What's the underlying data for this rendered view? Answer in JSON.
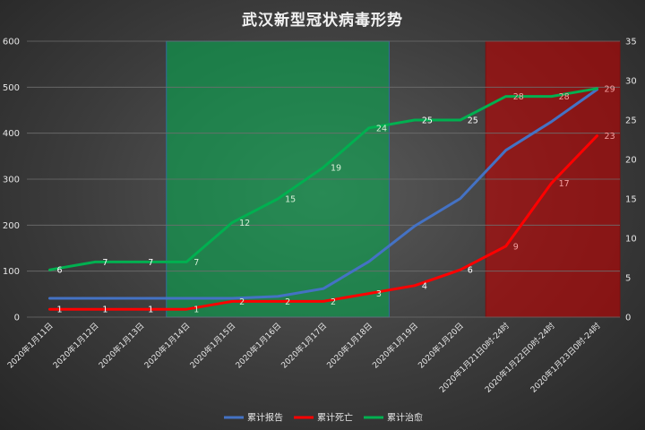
{
  "chart_data": {
    "type": "line",
    "title": "武汉新型冠状病毒形势",
    "categories": [
      "2020年1月11日",
      "2020年1月12日",
      "2020年1月13日",
      "2020年1月14日",
      "2020年1月15日",
      "2020年1月16日",
      "2020年1月17日",
      "2020年1月18日",
      "2020年1月19日",
      "2020年1月20日",
      "2020年1月21日0时-24时",
      "2020年1月22日0时-24时",
      "2020年1月23日0时-24时"
    ],
    "y_left": {
      "ylim": [
        0,
        600
      ],
      "ticks": [
        "0",
        "100",
        "200",
        "300",
        "400",
        "500",
        "600"
      ]
    },
    "y_right": {
      "ylim": [
        0,
        35
      ],
      "ticks": [
        "0",
        "5",
        "10",
        "15",
        "20",
        "25",
        "30",
        "35"
      ]
    },
    "series": [
      {
        "name": "累计报告",
        "axis": "left",
        "color": "#4472c4",
        "values": [
          41,
          41,
          41,
          41,
          41,
          45,
          62,
          121,
          198,
          258,
          363,
          425,
          495
        ],
        "labels": []
      },
      {
        "name": "累计死亡",
        "axis": "right",
        "color": "#ff0000",
        "values": [
          1,
          1,
          1,
          1,
          2,
          2,
          2,
          3,
          4,
          6,
          9,
          17,
          23
        ],
        "labels": [
          "1",
          "1",
          "1",
          "1",
          "2",
          "2",
          "2",
          "3",
          "4",
          "6",
          "9",
          "17",
          "23"
        ]
      },
      {
        "name": "累计治愈",
        "axis": "right",
        "color": "#00b050",
        "values": [
          6,
          7,
          7,
          7,
          12,
          15,
          19,
          24,
          25,
          25,
          28,
          28,
          29
        ],
        "labels": [
          "6",
          "7",
          "7",
          "7",
          "12",
          "15",
          "19",
          "24",
          "25",
          "25",
          "28",
          "28",
          "29"
        ]
      }
    ],
    "highlight_regions": [
      {
        "from_category": 3,
        "to_category": 7,
        "color": "#00b050"
      },
      {
        "from_category": 10,
        "to_category": 12,
        "color": "#c00000"
      }
    ],
    "legend_position": "bottom",
    "grid": true
  }
}
